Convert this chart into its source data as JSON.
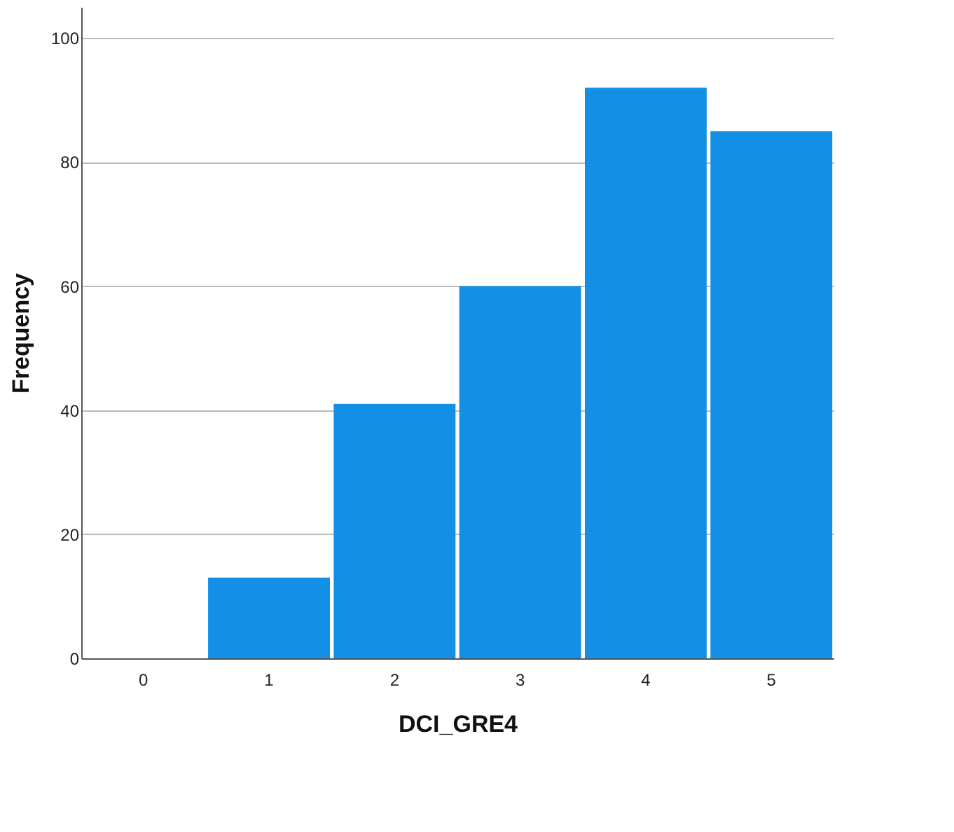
{
  "chart_data": {
    "type": "bar",
    "xlabel": "DCI_GRE4",
    "ylabel": "Frequency",
    "categories": [
      "0",
      "1",
      "2",
      "3",
      "4",
      "5"
    ],
    "values": [
      0,
      13,
      41,
      60,
      92,
      85
    ],
    "color": "#1390e6",
    "ylim": [
      0,
      105
    ],
    "yticks": [
      0,
      20,
      40,
      60,
      80,
      100
    ],
    "grid": "y"
  }
}
